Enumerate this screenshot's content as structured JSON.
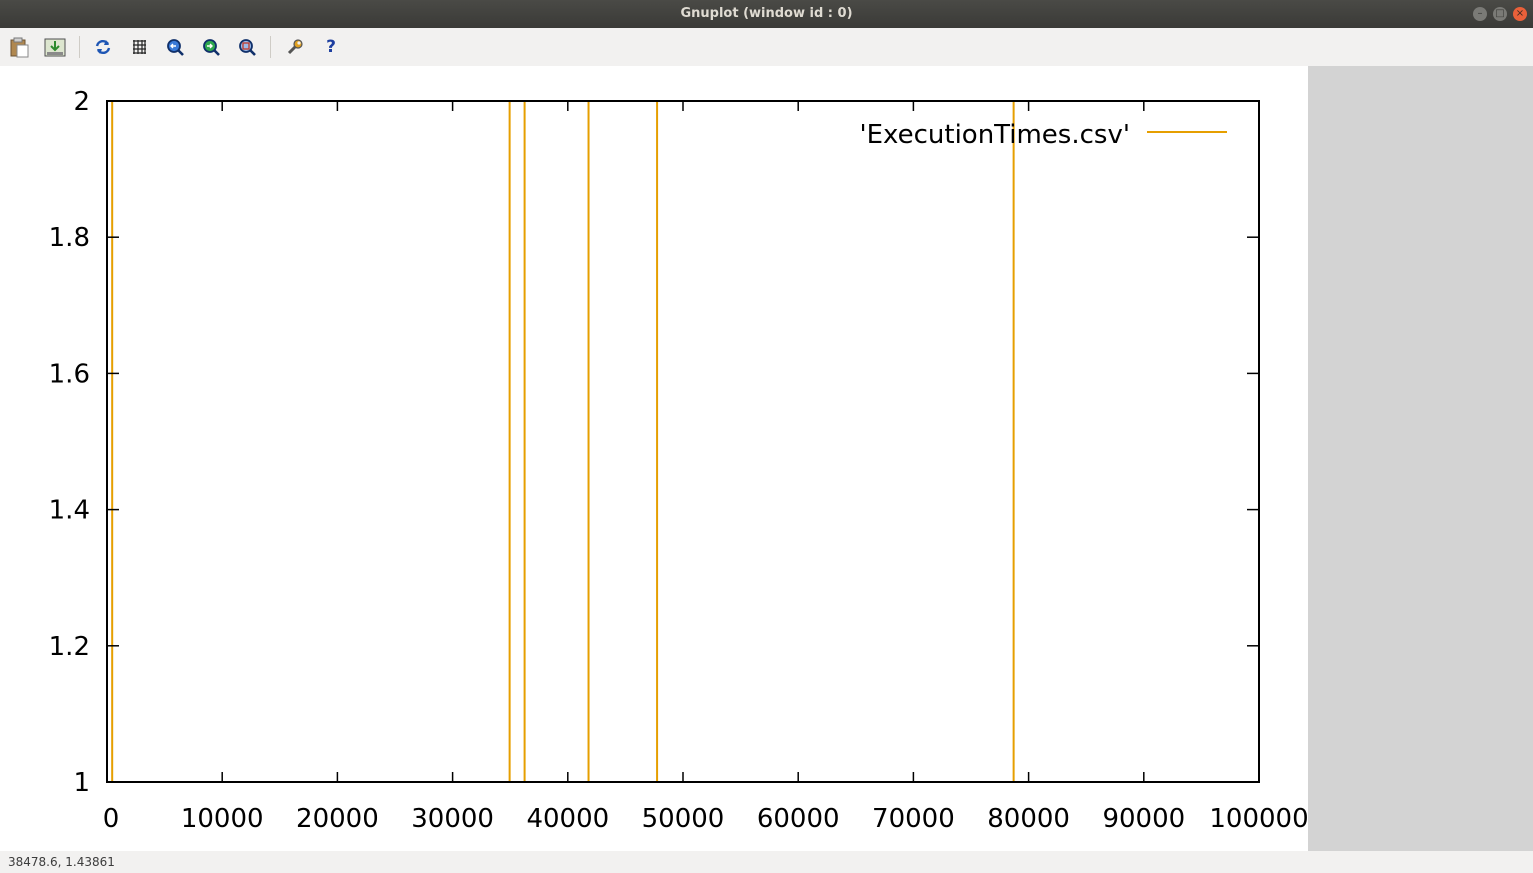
{
  "window": {
    "title": "Gnuplot (window id : 0)",
    "buttons": [
      "minimize",
      "maximize",
      "close"
    ]
  },
  "toolbar": {
    "items": [
      {
        "name": "copy-to-clipboard",
        "icon": "clipboard-icon"
      },
      {
        "name": "export",
        "icon": "export-icon"
      },
      {
        "name": "replot",
        "icon": "replot-icon"
      },
      {
        "name": "grid",
        "icon": "grid-icon"
      },
      {
        "name": "zoom-previous",
        "icon": "zoom-previous-icon"
      },
      {
        "name": "zoom-next",
        "icon": "zoom-next-icon"
      },
      {
        "name": "zoom-autoscale",
        "icon": "zoom-autoscale-icon"
      },
      {
        "name": "settings",
        "icon": "wrench-icon"
      },
      {
        "name": "help",
        "icon": "help-icon",
        "label": "?"
      }
    ]
  },
  "chart_data": {
    "type": "line",
    "title": "",
    "xlabel": "",
    "ylabel": "",
    "xlim": [
      0,
      100000
    ],
    "ylim": [
      1,
      2
    ],
    "x_ticks": [
      "0",
      "10000",
      "20000",
      "30000",
      "40000",
      "50000",
      "60000",
      "70000",
      "80000",
      "90000",
      "100000"
    ],
    "y_ticks": [
      "1",
      "1.2",
      "1.4",
      "1.6",
      "1.8",
      "2"
    ],
    "grid": false,
    "legend_position": "top-right",
    "series": [
      {
        "name": "'ExecutionTimes.csv'",
        "color": "#e69f00",
        "spikes_at_x": [
          450,
          34950,
          36250,
          41800,
          47750,
          78700
        ],
        "baseline_y": 1,
        "spike_y": 2
      }
    ]
  },
  "status": {
    "coordinates": "38478.6,  1.43861"
  }
}
